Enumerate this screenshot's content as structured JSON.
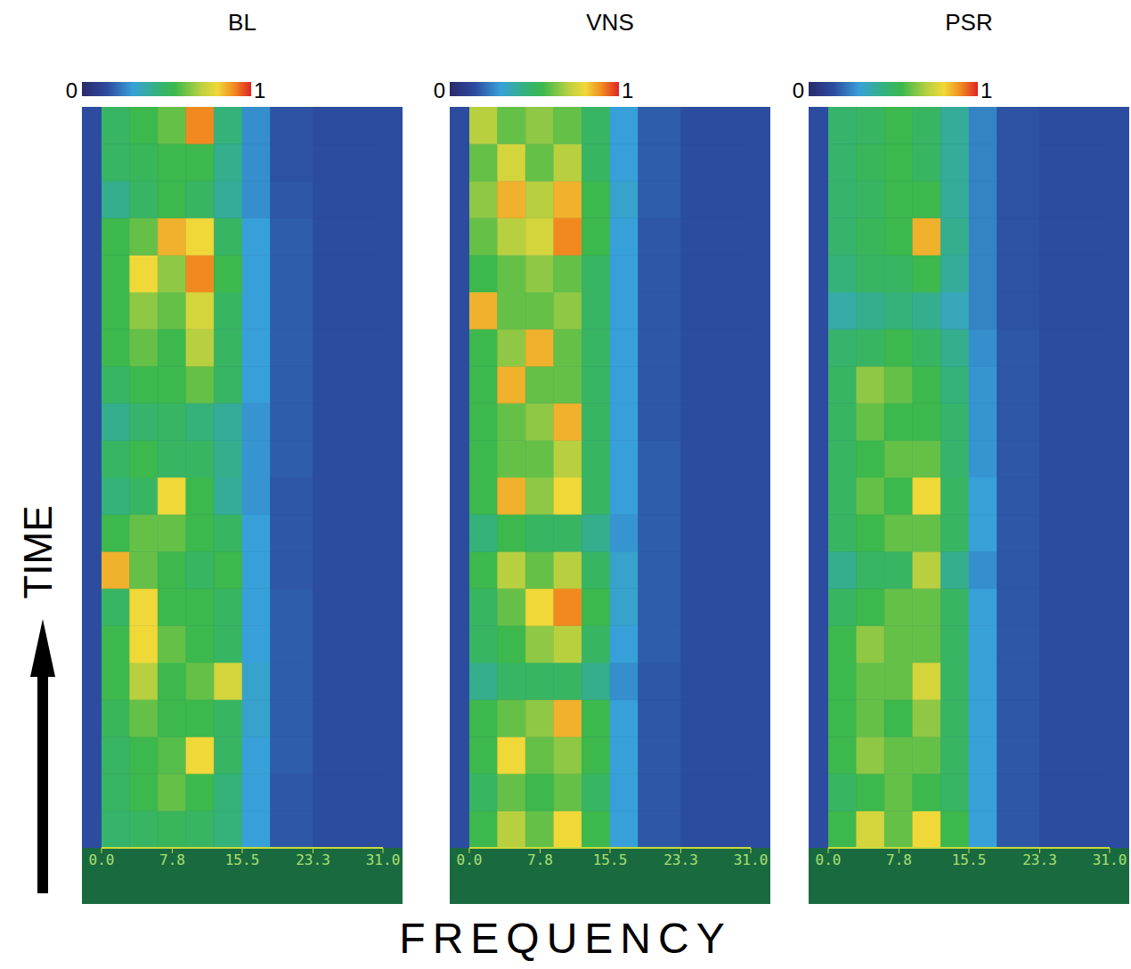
{
  "xlabel": "FREQUENCY",
  "ylabel": "TIME",
  "chart_data": [
    {
      "type": "heatmap",
      "title": "BL",
      "tick_labels": "x",
      "xlim": [
        0,
        31
      ],
      "xticks": [
        {
          "value": 0,
          "label": "0.0"
        },
        7.8,
        15.5,
        23.3,
        {
          "value": 31,
          "label": "31.0"
        }
      ],
      "bins": [
        0,
        3.1,
        6.2,
        9.3,
        12.4,
        15.5,
        18.6,
        23.3,
        31
      ],
      "colorbar": {
        "range": [
          0,
          1
        ],
        "ticks": [
          0,
          1
        ]
      },
      "cells": [
        [
          0.48,
          0.5,
          0.52,
          0.5,
          0.45,
          0.3,
          0.17,
          0.15
        ],
        [
          0.5,
          0.55,
          0.6,
          0.55,
          0.45,
          0.3,
          0.17,
          0.15
        ],
        [
          0.5,
          0.55,
          0.58,
          0.8,
          0.5,
          0.3,
          0.18,
          0.15
        ],
        [
          0.52,
          0.6,
          0.55,
          0.55,
          0.5,
          0.32,
          0.18,
          0.15
        ],
        [
          0.55,
          0.7,
          0.55,
          0.6,
          0.75,
          0.32,
          0.18,
          0.15
        ],
        [
          0.55,
          0.8,
          0.6,
          0.55,
          0.5,
          0.3,
          0.18,
          0.15
        ],
        [
          0.5,
          0.8,
          0.55,
          0.55,
          0.5,
          0.3,
          0.18,
          0.15
        ],
        [
          0.85,
          0.6,
          0.55,
          0.5,
          0.55,
          0.3,
          0.17,
          0.15
        ],
        [
          0.55,
          0.6,
          0.6,
          0.55,
          0.5,
          0.3,
          0.17,
          0.15
        ],
        [
          0.45,
          0.5,
          0.8,
          0.55,
          0.4,
          0.28,
          0.17,
          0.15
        ],
        [
          0.5,
          0.55,
          0.5,
          0.5,
          0.42,
          0.28,
          0.18,
          0.15
        ],
        [
          0.42,
          0.48,
          0.5,
          0.45,
          0.4,
          0.28,
          0.18,
          0.15
        ],
        [
          0.5,
          0.55,
          0.55,
          0.6,
          0.5,
          0.3,
          0.18,
          0.15
        ],
        [
          0.55,
          0.6,
          0.55,
          0.7,
          0.5,
          0.3,
          0.18,
          0.15
        ],
        [
          0.55,
          0.65,
          0.6,
          0.75,
          0.5,
          0.3,
          0.18,
          0.15
        ],
        [
          0.55,
          0.8,
          0.65,
          0.9,
          0.55,
          0.3,
          0.18,
          0.15
        ],
        [
          0.55,
          0.6,
          0.85,
          0.8,
          0.5,
          0.3,
          0.18,
          0.15
        ],
        [
          0.42,
          0.5,
          0.55,
          0.5,
          0.4,
          0.27,
          0.17,
          0.15
        ],
        [
          0.5,
          0.52,
          0.55,
          0.55,
          0.42,
          0.27,
          0.16,
          0.15
        ],
        [
          0.5,
          0.55,
          0.6,
          0.9,
          0.45,
          0.27,
          0.16,
          0.15
        ]
      ]
    },
    {
      "type": "heatmap",
      "title": "VNS",
      "tick_labels": "x",
      "xlim": [
        0,
        31
      ],
      "xticks": [
        {
          "value": 0,
          "label": "0.0"
        },
        7.8,
        15.5,
        23.3,
        {
          "value": 31,
          "label": "31.0"
        }
      ],
      "bins": [
        0,
        3.1,
        6.2,
        9.3,
        12.4,
        15.5,
        18.6,
        23.3,
        31
      ],
      "colorbar": {
        "range": [
          0,
          1
        ],
        "ticks": [
          0,
          1
        ]
      },
      "cells": [
        [
          0.55,
          0.7,
          0.6,
          0.8,
          0.55,
          0.3,
          0.17,
          0.15
        ],
        [
          0.5,
          0.6,
          0.55,
          0.6,
          0.5,
          0.3,
          0.17,
          0.15
        ],
        [
          0.55,
          0.8,
          0.6,
          0.65,
          0.55,
          0.3,
          0.17,
          0.15
        ],
        [
          0.55,
          0.6,
          0.65,
          0.85,
          0.55,
          0.3,
          0.17,
          0.15
        ],
        [
          0.42,
          0.5,
          0.5,
          0.5,
          0.42,
          0.27,
          0.17,
          0.15
        ],
        [
          0.5,
          0.55,
          0.65,
          0.7,
          0.5,
          0.3,
          0.18,
          0.15
        ],
        [
          0.5,
          0.6,
          0.8,
          0.9,
          0.55,
          0.32,
          0.18,
          0.15
        ],
        [
          0.55,
          0.7,
          0.6,
          0.7,
          0.5,
          0.32,
          0.18,
          0.15
        ],
        [
          0.45,
          0.55,
          0.5,
          0.5,
          0.42,
          0.28,
          0.18,
          0.15
        ],
        [
          0.55,
          0.85,
          0.65,
          0.8,
          0.5,
          0.3,
          0.18,
          0.15
        ],
        [
          0.55,
          0.6,
          0.6,
          0.7,
          0.5,
          0.3,
          0.18,
          0.15
        ],
        [
          0.55,
          0.6,
          0.65,
          0.85,
          0.5,
          0.3,
          0.17,
          0.15
        ],
        [
          0.55,
          0.85,
          0.6,
          0.6,
          0.5,
          0.3,
          0.17,
          0.15
        ],
        [
          0.55,
          0.65,
          0.85,
          0.6,
          0.5,
          0.3,
          0.17,
          0.15
        ],
        [
          0.85,
          0.6,
          0.6,
          0.65,
          0.5,
          0.3,
          0.17,
          0.15
        ],
        [
          0.55,
          0.6,
          0.65,
          0.6,
          0.5,
          0.3,
          0.17,
          0.15
        ],
        [
          0.6,
          0.7,
          0.75,
          0.9,
          0.55,
          0.3,
          0.17,
          0.15
        ],
        [
          0.65,
          0.85,
          0.7,
          0.85,
          0.55,
          0.32,
          0.18,
          0.15
        ],
        [
          0.6,
          0.75,
          0.6,
          0.7,
          0.5,
          0.3,
          0.18,
          0.15
        ],
        [
          0.7,
          0.6,
          0.65,
          0.6,
          0.5,
          0.3,
          0.18,
          0.15
        ]
      ]
    },
    {
      "type": "heatmap",
      "title": "PSR",
      "tick_labels": "x",
      "xlim": [
        0,
        31
      ],
      "xticks": [
        {
          "value": 0,
          "label": "0.0"
        },
        7.8,
        15.5,
        23.3,
        {
          "value": 31,
          "label": "31.0"
        }
      ],
      "bins": [
        0,
        3.1,
        6.2,
        9.3,
        12.4,
        15.5,
        18.6,
        23.3,
        31
      ],
      "colorbar": {
        "range": [
          0,
          1
        ],
        "ticks": [
          0,
          1
        ]
      },
      "cells": [
        [
          0.55,
          0.75,
          0.6,
          0.8,
          0.55,
          0.3,
          0.17,
          0.15
        ],
        [
          0.5,
          0.55,
          0.6,
          0.55,
          0.5,
          0.3,
          0.17,
          0.15
        ],
        [
          0.55,
          0.65,
          0.6,
          0.6,
          0.5,
          0.3,
          0.17,
          0.15
        ],
        [
          0.55,
          0.6,
          0.55,
          0.65,
          0.5,
          0.3,
          0.17,
          0.15
        ],
        [
          0.55,
          0.6,
          0.6,
          0.75,
          0.5,
          0.3,
          0.17,
          0.15
        ],
        [
          0.55,
          0.65,
          0.6,
          0.6,
          0.5,
          0.3,
          0.17,
          0.15
        ],
        [
          0.5,
          0.55,
          0.6,
          0.6,
          0.5,
          0.3,
          0.17,
          0.15
        ],
        [
          0.42,
          0.5,
          0.5,
          0.7,
          0.42,
          0.27,
          0.17,
          0.15
        ],
        [
          0.5,
          0.55,
          0.6,
          0.6,
          0.5,
          0.3,
          0.17,
          0.15
        ],
        [
          0.5,
          0.6,
          0.55,
          0.8,
          0.5,
          0.3,
          0.17,
          0.15
        ],
        [
          0.5,
          0.55,
          0.6,
          0.6,
          0.48,
          0.28,
          0.17,
          0.15
        ],
        [
          0.5,
          0.6,
          0.55,
          0.55,
          0.48,
          0.28,
          0.17,
          0.15
        ],
        [
          0.5,
          0.65,
          0.6,
          0.55,
          0.45,
          0.28,
          0.17,
          0.15
        ],
        [
          0.48,
          0.5,
          0.55,
          0.5,
          0.42,
          0.27,
          0.17,
          0.15
        ],
        [
          0.38,
          0.42,
          0.45,
          0.42,
          0.35,
          0.25,
          0.16,
          0.15
        ],
        [
          0.45,
          0.5,
          0.5,
          0.55,
          0.4,
          0.25,
          0.16,
          0.15
        ],
        [
          0.48,
          0.52,
          0.55,
          0.85,
          0.42,
          0.25,
          0.16,
          0.15
        ],
        [
          0.48,
          0.5,
          0.55,
          0.55,
          0.4,
          0.25,
          0.16,
          0.15
        ],
        [
          0.48,
          0.52,
          0.55,
          0.5,
          0.4,
          0.25,
          0.16,
          0.15
        ],
        [
          0.48,
          0.5,
          0.55,
          0.5,
          0.4,
          0.25,
          0.16,
          0.15
        ]
      ]
    }
  ]
}
